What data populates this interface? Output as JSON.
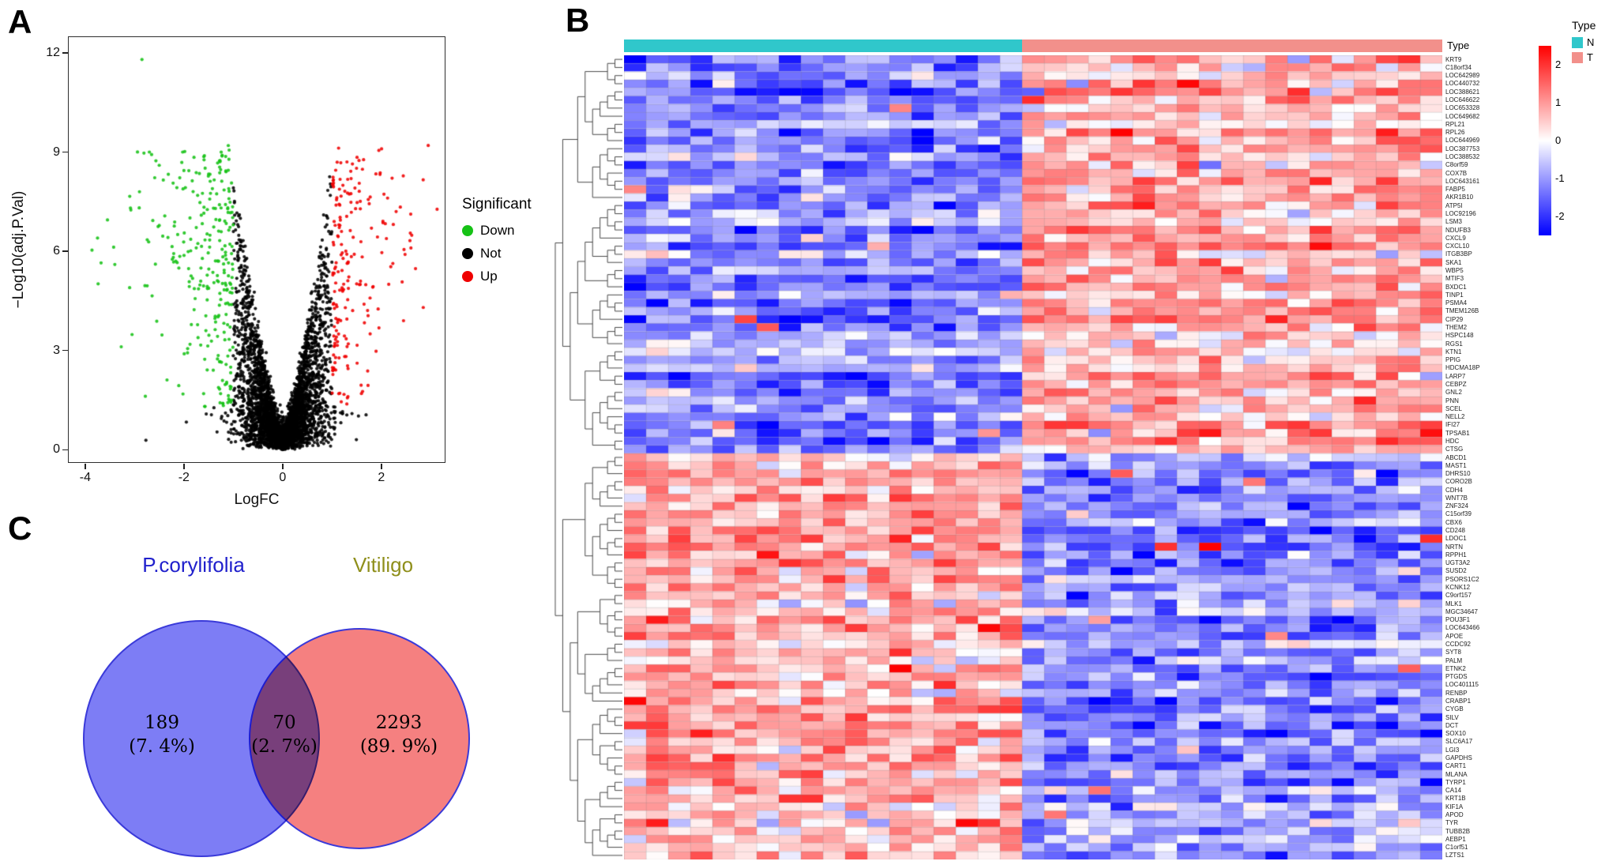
{
  "figure": {
    "bg": "#ffffff",
    "panels": {
      "A": {
        "label": "A"
      },
      "B": {
        "label": "B"
      },
      "C": {
        "label": "C"
      }
    }
  },
  "chart_data": [
    {
      "panel": "A",
      "type": "scatter",
      "subtype": "volcano",
      "xlabel": "LogFC",
      "ylabel": "−Log10(adj.P.Val)",
      "xlim": [
        -4.35,
        3.3
      ],
      "ylim": [
        -0.4,
        12.5
      ],
      "xticks": [
        -4,
        -2,
        0,
        2
      ],
      "yticks": [
        0,
        3,
        6,
        9,
        12
      ],
      "thresholds": {
        "logfc": 1.0,
        "neglogp": 1.3
      },
      "n_points": 4600,
      "legend": {
        "title": "Significant",
        "entries": [
          {
            "label": "Down",
            "color": "#16C216"
          },
          {
            "label": "Not",
            "color": "#000000"
          },
          {
            "label": "Up",
            "color": "#EF0000"
          }
        ]
      },
      "notable_points": [
        {
          "x": -2.85,
          "y": 11.8,
          "group": "Down"
        },
        {
          "x": -3.75,
          "y": 6.4,
          "group": "Down"
        },
        {
          "x": -3.1,
          "y": 4.9,
          "group": "Down"
        },
        {
          "x": -2.9,
          "y": 7.8,
          "group": "Down"
        },
        {
          "x": -3.4,
          "y": 5.6,
          "group": "Down"
        },
        {
          "x": -2.7,
          "y": 9.0,
          "group": "Down"
        },
        {
          "x": -2.5,
          "y": 8.6,
          "group": "Down"
        },
        {
          "x": 2.95,
          "y": 9.2,
          "group": "Up"
        },
        {
          "x": 1.95,
          "y": 9.05,
          "group": "Up"
        },
        {
          "x": 2.3,
          "y": 7.2,
          "group": "Up"
        },
        {
          "x": 2.6,
          "y": 6.1,
          "group": "Up"
        },
        {
          "x": 2.85,
          "y": 4.3,
          "group": "Up"
        },
        {
          "x": 2.15,
          "y": 5.0,
          "group": "Up"
        },
        {
          "x": 1.8,
          "y": 6.7,
          "group": "Up"
        },
        {
          "x": 2.45,
          "y": 3.9,
          "group": "Up"
        },
        {
          "x": 1.65,
          "y": 4.4,
          "group": "Up"
        }
      ]
    },
    {
      "panel": "B",
      "type": "heatmap",
      "annotation_title": "Type",
      "col_groups": [
        {
          "name": "N",
          "color": "#30C7CB",
          "n": 18
        },
        {
          "name": "T",
          "color": "#F2908B",
          "n": 19
        }
      ],
      "value_range": [
        -2.5,
        2.5
      ],
      "cluster_split_row": 49,
      "pattern": {
        "top_cluster": {
          "N": -1.15,
          "T": 0.85
        },
        "bottom_cluster": {
          "N": 0.85,
          "T": -1.15
        },
        "noise_sd": 0.55
      },
      "legend": {
        "type_title": "Type",
        "types": [
          {
            "label": "N",
            "color": "#30C7CB"
          },
          {
            "label": "T",
            "color": "#F2908B"
          }
        ],
        "colorbar_ticks": [
          2,
          1,
          0,
          -1,
          -2
        ],
        "colorbar_max_color": "#FF0000",
        "colorbar_mid_color": "#FFFFFF",
        "colorbar_min_color": "#0000FF"
      },
      "row_labels": [
        "KRT9",
        "C18orf34",
        "LOC642989",
        "LOC440732",
        "LOC388621",
        "LOC646622",
        "LOC653328",
        "LOC649682",
        "RPL21",
        "RPL26",
        "LOC644969",
        "LOC387753",
        "LOC388532",
        "C8orf59",
        "COX7B",
        "LOC643161",
        "FABP5",
        "AKR1B10",
        "ATP5I",
        "LOC92196",
        "LSM3",
        "NDUFB3",
        "CXCL9",
        "CXCL10",
        "ITGB3BP",
        "SKA1",
        "WBP5",
        "MTIF3",
        "BXDC1",
        "TINP1",
        "PSMA4",
        "TMEM126B",
        "CIP29",
        "THEM2",
        "HSPC148",
        "RGS1",
        "KTN1",
        "PPIG",
        "HDCMA18P",
        "LARP7",
        "CEBPZ",
        "GNL2",
        "PNN",
        "SCEL",
        "NELL2",
        "IFI27",
        "TPSAB1",
        "HDC",
        "CTSG",
        "ABCD1",
        "MAST1",
        "DHRS10",
        "CORO2B",
        "CDH4",
        "WNT7B",
        "ZNF324",
        "C15orf39",
        "CBX6",
        "CD248",
        "LDOC1",
        "NRTN",
        "RPPH1",
        "UGT3A2",
        "SUSD2",
        "PSORS1C2",
        "KCNK12",
        "C9orf157",
        "MLK1",
        "MGC34647",
        "POU3F1",
        "LOC643466",
        "APOE",
        "CCDC92",
        "SYT8",
        "PALM",
        "ETNK2",
        "PTGDS",
        "LOC401115",
        "RENBP",
        "CRABP1",
        "CYGB",
        "SILV",
        "DCT",
        "SOX10",
        "SLC6A17",
        "LGI3",
        "GAPDHS",
        "CART1",
        "MLANA",
        "TYRP1",
        "CA14",
        "KRT1B",
        "KIF1A",
        "APOD",
        "TYR",
        "TUBB2B",
        "AEBP1",
        "C1orf51",
        "LZTS1"
      ]
    },
    {
      "panel": "C",
      "type": "venn",
      "sets": [
        {
          "label": "P.corylifolia",
          "label_color": "#2020CC",
          "fill": "#7D7DF5",
          "count": 189,
          "count_label": "189",
          "pct_label": "(7. 4%)"
        },
        {
          "label": "Vitiligo",
          "label_color": "#8F8F1B",
          "fill": "#F58080",
          "count": 2293,
          "count_label": "2293",
          "pct_label": "(89. 9%)"
        }
      ],
      "intersection": {
        "count": 70,
        "count_label": "70",
        "pct_label": "(2. 7%)"
      }
    }
  ]
}
